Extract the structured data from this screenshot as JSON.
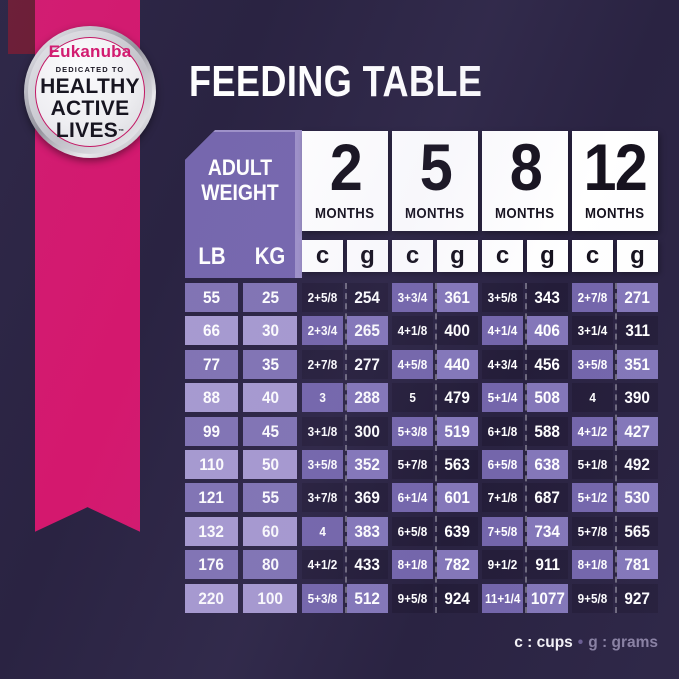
{
  "title": "FEEDING TABLE",
  "badge": {
    "brand": "Eukanuba",
    "tagline": "DEDICATED TO",
    "line1": "HEALTHY",
    "line2": "ACTIVE",
    "line3": "LIVES",
    "tm": "™"
  },
  "table": {
    "corner": {
      "line1": "ADULT",
      "line2": "WEIGHT"
    },
    "weight_headers": {
      "lb": "LB",
      "kg": "KG"
    },
    "unit_c": "c",
    "unit_g": "g",
    "months": [
      {
        "number": "2",
        "label": "MONTHS"
      },
      {
        "number": "5",
        "label": "MONTHS"
      },
      {
        "number": "8",
        "label": "MONTHS"
      },
      {
        "number": "12",
        "label": "MONTHS"
      }
    ],
    "rows": [
      {
        "lb": "55",
        "kg": "25",
        "values": [
          [
            "2+5/8",
            "254"
          ],
          [
            "3+3/4",
            "361"
          ],
          [
            "3+5/8",
            "343"
          ],
          [
            "2+7/8",
            "271"
          ]
        ]
      },
      {
        "lb": "66",
        "kg": "30",
        "values": [
          [
            "2+3/4",
            "265"
          ],
          [
            "4+1/8",
            "400"
          ],
          [
            "4+1/4",
            "406"
          ],
          [
            "3+1/4",
            "311"
          ]
        ]
      },
      {
        "lb": "77",
        "kg": "35",
        "values": [
          [
            "2+7/8",
            "277"
          ],
          [
            "4+5/8",
            "440"
          ],
          [
            "4+3/4",
            "456"
          ],
          [
            "3+5/8",
            "351"
          ]
        ]
      },
      {
        "lb": "88",
        "kg": "40",
        "values": [
          [
            "3",
            "288"
          ],
          [
            "5",
            "479"
          ],
          [
            "5+1/4",
            "508"
          ],
          [
            "4",
            "390"
          ]
        ]
      },
      {
        "lb": "99",
        "kg": "45",
        "values": [
          [
            "3+1/8",
            "300"
          ],
          [
            "5+3/8",
            "519"
          ],
          [
            "6+1/8",
            "588"
          ],
          [
            "4+1/2",
            "427"
          ]
        ]
      },
      {
        "lb": "110",
        "kg": "50",
        "values": [
          [
            "3+5/8",
            "352"
          ],
          [
            "5+7/8",
            "563"
          ],
          [
            "6+5/8",
            "638"
          ],
          [
            "5+1/8",
            "492"
          ]
        ]
      },
      {
        "lb": "121",
        "kg": "55",
        "values": [
          [
            "3+7/8",
            "369"
          ],
          [
            "6+1/4",
            "601"
          ],
          [
            "7+1/8",
            "687"
          ],
          [
            "5+1/2",
            "530"
          ]
        ]
      },
      {
        "lb": "132",
        "kg": "60",
        "values": [
          [
            "4",
            "383"
          ],
          [
            "6+5/8",
            "639"
          ],
          [
            "7+5/8",
            "734"
          ],
          [
            "5+7/8",
            "565"
          ]
        ]
      },
      {
        "lb": "176",
        "kg": "80",
        "values": [
          [
            "4+1/2",
            "433"
          ],
          [
            "8+1/8",
            "782"
          ],
          [
            "9+1/2",
            "911"
          ],
          [
            "8+1/8",
            "781"
          ]
        ]
      },
      {
        "lb": "220",
        "kg": "100",
        "values": [
          [
            "5+3/8",
            "512"
          ],
          [
            "9+5/8",
            "924"
          ],
          [
            "11+1/4",
            "1077"
          ],
          [
            "9+5/8",
            "927"
          ]
        ]
      }
    ]
  },
  "legend": {
    "cups": "c : cups",
    "separator": "•",
    "grams": "g : grams"
  },
  "chart_data": {
    "type": "table",
    "title": "FEEDING TABLE",
    "columns": [
      "LB",
      "KG",
      "2 months c",
      "2 months g",
      "5 months c",
      "5 months g",
      "8 months c",
      "8 months g",
      "12 months c",
      "12 months g"
    ],
    "units": {
      "c": "cups",
      "g": "grams"
    },
    "rows": [
      [
        "55",
        "25",
        "2+5/8",
        "254",
        "3+3/4",
        "361",
        "3+5/8",
        "343",
        "2+7/8",
        "271"
      ],
      [
        "66",
        "30",
        "2+3/4",
        "265",
        "4+1/8",
        "400",
        "4+1/4",
        "406",
        "3+1/4",
        "311"
      ],
      [
        "77",
        "35",
        "2+7/8",
        "277",
        "4+5/8",
        "440",
        "4+3/4",
        "456",
        "3+5/8",
        "351"
      ],
      [
        "88",
        "40",
        "3",
        "288",
        "5",
        "479",
        "5+1/4",
        "508",
        "4",
        "390"
      ],
      [
        "99",
        "45",
        "3+1/8",
        "300",
        "5+3/8",
        "519",
        "6+1/8",
        "588",
        "4+1/2",
        "427"
      ],
      [
        "110",
        "50",
        "3+5/8",
        "352",
        "5+7/8",
        "563",
        "6+5/8",
        "638",
        "5+1/8",
        "492"
      ],
      [
        "121",
        "55",
        "3+7/8",
        "369",
        "6+1/4",
        "601",
        "7+1/8",
        "687",
        "5+1/2",
        "530"
      ],
      [
        "132",
        "60",
        "4",
        "383",
        "6+5/8",
        "639",
        "7+5/8",
        "734",
        "5+7/8",
        "565"
      ],
      [
        "176",
        "80",
        "4+1/2",
        "433",
        "8+1/8",
        "782",
        "9+1/2",
        "911",
        "8+1/8",
        "781"
      ],
      [
        "220",
        "100",
        "5+3/8",
        "512",
        "9+5/8",
        "924",
        "11+1/4",
        "1077",
        "9+5/8",
        "927"
      ]
    ]
  },
  "colors": {
    "background": "#2a2342",
    "ribbon_pink": "#d4186e",
    "ribbon_fold_maroon": "#6b1a32",
    "panel_purple": "#7667ae",
    "panel_light_purple": "#9e91c9",
    "cell_dark": "#241d39",
    "cell_purple_c": "#7466ab",
    "cell_purple_g": "#8477b9",
    "weight_cell_medium": "#8174b4",
    "weight_cell_light": "#a79ad0",
    "header_box": "#ffffff",
    "header_text": "#16121e"
  }
}
